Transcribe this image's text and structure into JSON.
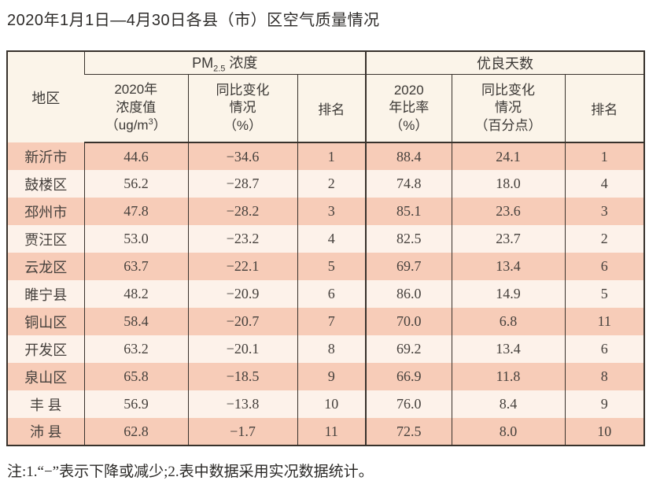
{
  "title": "2020年1月1日—4月30日各县（市）区空气质量情况",
  "note": "注:1.“−”表示下降或减少;2.表中数据采用实况数据统计。",
  "colors": {
    "row_odd": "#f7ccb8",
    "row_even": "#fdf2ea",
    "header_bg": "#fbf4e9",
    "border": "#38322c",
    "text": "#45403c"
  },
  "table": {
    "headers": {
      "region": "地区",
      "pm_group": {
        "pm": "PM",
        "sub": "2.5",
        "rest": " 浓度"
      },
      "good_group": "优良天数",
      "pm_value": {
        "l1": "2020年",
        "l2": "浓度值",
        "l3a": "（ug/m",
        "l3sup": "3",
        "l3b": "）"
      },
      "pm_change": {
        "l1": "同比变化",
        "l2": "情况",
        "l3": "（%）"
      },
      "pm_rank": "排名",
      "good_ratio": {
        "l1": "2020",
        "l2": "年比率",
        "l3": "（%）"
      },
      "good_change": {
        "l1": "同比变化",
        "l2": "情况",
        "l3": "（百分点）"
      },
      "good_rank": "排名"
    },
    "row_keys": [
      "region",
      "pm_value",
      "pm_change",
      "pm_rank",
      "good_ratio",
      "good_change",
      "good_rank"
    ],
    "rows": [
      {
        "region": "新沂市",
        "pm_value": "44.6",
        "pm_change": "−34.6",
        "pm_rank": "1",
        "good_ratio": "88.4",
        "good_change": "24.1",
        "good_rank": "1"
      },
      {
        "region": "鼓楼区",
        "pm_value": "56.2",
        "pm_change": "−28.7",
        "pm_rank": "2",
        "good_ratio": "74.8",
        "good_change": "18.0",
        "good_rank": "4"
      },
      {
        "region": "邳州市",
        "pm_value": "47.8",
        "pm_change": "−28.2",
        "pm_rank": "3",
        "good_ratio": "85.1",
        "good_change": "23.6",
        "good_rank": "3"
      },
      {
        "region": "贾汪区",
        "pm_value": "53.0",
        "pm_change": "−23.2",
        "pm_rank": "4",
        "good_ratio": "82.5",
        "good_change": "23.7",
        "good_rank": "2"
      },
      {
        "region": "云龙区",
        "pm_value": "63.7",
        "pm_change": "−22.1",
        "pm_rank": "5",
        "good_ratio": "69.7",
        "good_change": "13.4",
        "good_rank": "6"
      },
      {
        "region": "睢宁县",
        "pm_value": "48.2",
        "pm_change": "−20.9",
        "pm_rank": "6",
        "good_ratio": "86.0",
        "good_change": "14.9",
        "good_rank": "5"
      },
      {
        "region": "铜山区",
        "pm_value": "58.4",
        "pm_change": "−20.7",
        "pm_rank": "7",
        "good_ratio": "70.0",
        "good_change": "6.8",
        "good_rank": "11"
      },
      {
        "region": "开发区",
        "pm_value": "63.2",
        "pm_change": "−20.1",
        "pm_rank": "8",
        "good_ratio": "69.2",
        "good_change": "13.4",
        "good_rank": "6"
      },
      {
        "region": "泉山区",
        "pm_value": "65.8",
        "pm_change": "−18.5",
        "pm_rank": "9",
        "good_ratio": "66.9",
        "good_change": "11.8",
        "good_rank": "8"
      },
      {
        "region": "丰 县",
        "pm_value": "56.9",
        "pm_change": "−13.8",
        "pm_rank": "10",
        "good_ratio": "76.0",
        "good_change": "8.4",
        "good_rank": "9"
      },
      {
        "region": "沛 县",
        "pm_value": "62.8",
        "pm_change": "−1.7",
        "pm_rank": "11",
        "good_ratio": "72.5",
        "good_change": "8.0",
        "good_rank": "10"
      }
    ]
  }
}
